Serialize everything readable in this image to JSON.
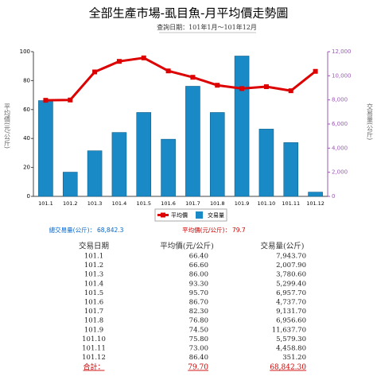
{
  "chart_data": {
    "type": "bar-line",
    "title": "全部生產市場-虱目魚-月平均價走勢圖",
    "subtitle": "查詢日期：101年1月～101年12月",
    "y_label": "平均價(元/公斤)",
    "y2_label": "交易量(公斤)",
    "categories": [
      "101.1",
      "101.2",
      "101.3",
      "101.4",
      "101.5",
      "101.6",
      "101.7",
      "101.8",
      "101.9",
      "101.10",
      "101.11",
      "101.12"
    ],
    "series": [
      {
        "name": "平均價",
        "color": "#dd0000",
        "type": "line",
        "values": [
          66.4,
          66.6,
          86.0,
          93.3,
          95.7,
          86.7,
          82.3,
          76.8,
          74.5,
          75.8,
          73.0,
          86.4
        ]
      },
      {
        "name": "交易量",
        "color": "#1a8ac6",
        "type": "bar",
        "axis": "y2",
        "values": [
          7943.7,
          2007.9,
          3780.6,
          5299.4,
          6957.7,
          4737.7,
          9131.7,
          6956.6,
          11637.7,
          5579.3,
          4458.8,
          351.2
        ]
      }
    ],
    "ylim": [
      0,
      100
    ],
    "yticks": [
      0,
      20,
      40,
      60,
      80,
      100
    ],
    "y2lim": [
      0,
      12000
    ],
    "y2ticks": [
      0,
      {
        "value": 2000,
        "label": "2,000"
      },
      {
        "value": 4000,
        "label": "4,000"
      },
      {
        "value": 6000,
        "label": "6,000"
      },
      {
        "value": 8000,
        "label": "8,000"
      },
      {
        "value": 10000,
        "label": "10,000"
      },
      {
        "value": 12000,
        "label": "12,000"
      }
    ]
  },
  "summary": [
    {
      "label": "總交易量(公斤)：",
      "value": "68,842.3"
    },
    {
      "label": "平均價(元/公斤)：",
      "value": "79.7"
    }
  ],
  "table": {
    "header": [
      "交易日期",
      "平均價(元/公斤)",
      "交易量(公斤)"
    ],
    "rows": [
      [
        "101.1",
        "66.40",
        "7,943.70"
      ],
      [
        "101.2",
        "66.60",
        "2,007.90"
      ],
      [
        "101.3",
        "86.00",
        "3,780.60"
      ],
      [
        "101.4",
        "93.30",
        "5,299.40"
      ],
      [
        "101.5",
        "95.70",
        "6,957.70"
      ],
      [
        "101.6",
        "86.70",
        "4,737.70"
      ],
      [
        "101.7",
        "82.30",
        "9,131.70"
      ],
      [
        "101.8",
        "76.80",
        "6,956.60"
      ],
      [
        "101.9",
        "74.50",
        "11,637.70"
      ],
      [
        "101.10",
        "75.80",
        "5,579.30"
      ],
      [
        "101.11",
        "73.00",
        "4,458.80"
      ],
      [
        "101.12",
        "86.40",
        "351.20"
      ]
    ],
    "total": [
      "合計：",
      "79.70",
      "68,842.30"
    ]
  }
}
